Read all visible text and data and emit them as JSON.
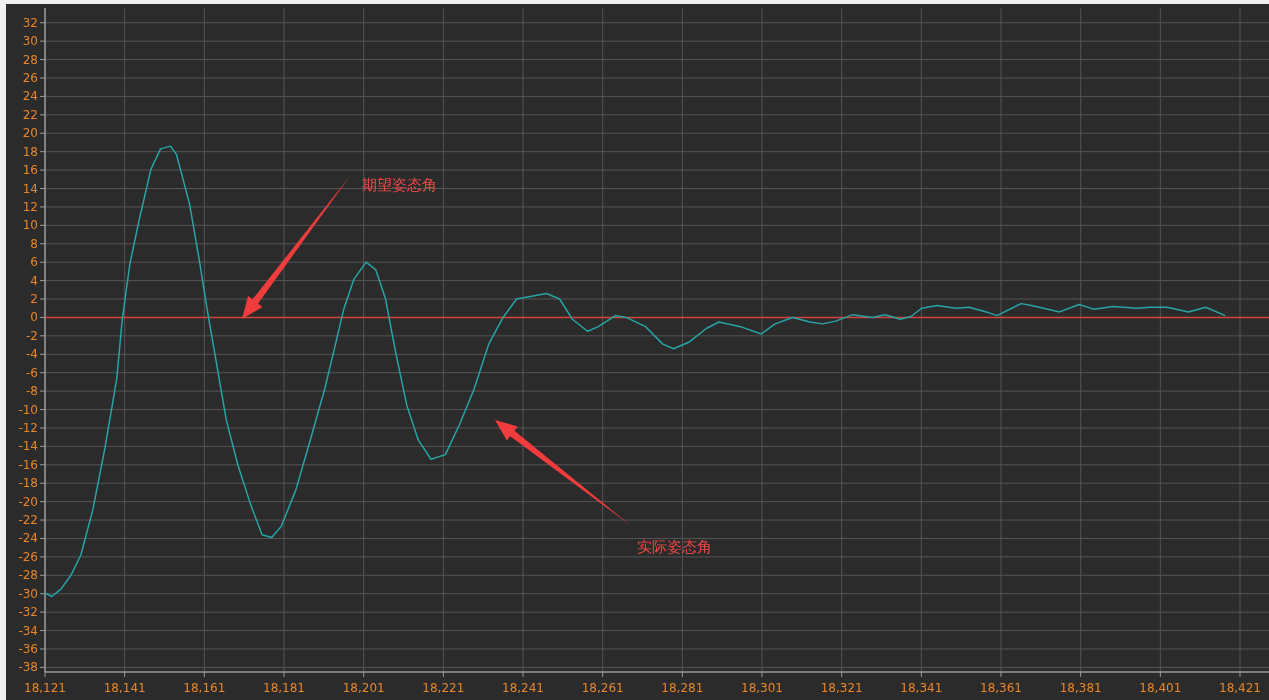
{
  "chart_data": {
    "type": "line",
    "x": [
      18121,
      18122.7,
      18125,
      18127.5,
      18130,
      18133,
      18136,
      18139,
      18140.4,
      18142.3,
      18144.7,
      18147.6,
      18150,
      18152.5,
      18154,
      18157.3,
      18159.7,
      18161.7,
      18163.9,
      18166.5,
      18169.4,
      18172.6,
      18175.5,
      18177.9,
      18180.3,
      18184,
      18187.6,
      18191.2,
      18193.6,
      18196,
      18198.5,
      18201.6,
      18204,
      18206.5,
      18208.9,
      18211.8,
      18214.7,
      18217.9,
      18221.5,
      18225.1,
      18228.7,
      18232.4,
      18236,
      18239.4,
      18246.9,
      18250.2,
      18253.4,
      18257.2,
      18259.9,
      18264.2,
      18266.9,
      18271.8,
      18276.1,
      18278.8,
      18282.6,
      18287,
      18290.2,
      18295.6,
      18300.8,
      18304.3,
      18308.7,
      18313,
      18316.2,
      18319.5,
      18323.8,
      18328.7,
      18331.9,
      18335.7,
      18338.4,
      18341.1,
      18344.9,
      18349.7,
      18353,
      18357.3,
      18360,
      18366,
      18368.7,
      18375.7,
      18380.6,
      18384.3,
      18389.2,
      18395.1,
      18398.4,
      18402.7,
      18408.1,
      18412.4,
      18417.3
    ],
    "series": [
      {
        "color": "#27a4a6",
        "values": [
          -29.9,
          -30.3,
          -29.5,
          -28,
          -25.8,
          -20.9,
          -14.3,
          -6.7,
          -0.2,
          5.8,
          10.7,
          16.1,
          18.3,
          18.6,
          17.7,
          12.3,
          6.3,
          0.9,
          -4.6,
          -11.1,
          -16,
          -20.3,
          -23.6,
          -23.9,
          -22.7,
          -18.7,
          -13.3,
          -7.8,
          -3.5,
          0.9,
          4.1,
          6,
          5.2,
          2,
          -3.5,
          -9.5,
          -13.3,
          -15.4,
          -14.9,
          -11.6,
          -7.8,
          -2.9,
          0,
          2,
          2.6,
          2,
          -0.2,
          -1.5,
          -1,
          0.2,
          0,
          -1,
          -2.9,
          -3.4,
          -2.7,
          -1.2,
          -0.5,
          -1,
          -1.8,
          -0.7,
          0,
          -0.5,
          -0.7,
          -0.4,
          0.3,
          0,
          0.3,
          -0.2,
          0.1,
          1,
          1.3,
          1,
          1.1,
          0.6,
          0.2,
          1.5,
          1.3,
          0.6,
          1.4,
          0.9,
          1.2,
          1,
          1.1,
          1.1,
          0.6,
          1.1,
          0.2
        ]
      }
    ],
    "xlim": [
      18121,
      18421
    ],
    "ylim": [
      -38.5,
      33.6
    ],
    "xticks": [
      {
        "value": 18121,
        "label": "18,121"
      },
      {
        "value": 18141,
        "label": "18,141"
      },
      {
        "value": 18161,
        "label": "18,161"
      },
      {
        "value": 18181,
        "label": "18,181"
      },
      {
        "value": 18201,
        "label": "18,201"
      },
      {
        "value": 18221,
        "label": "18,221"
      },
      {
        "value": 18241,
        "label": "18,241"
      },
      {
        "value": 18261,
        "label": "18,261"
      },
      {
        "value": 18281,
        "label": "18,281"
      },
      {
        "value": 18301,
        "label": "18,301"
      },
      {
        "value": 18321,
        "label": "18,321"
      },
      {
        "value": 18341,
        "label": "18,341"
      },
      {
        "value": 18361,
        "label": "18,361"
      },
      {
        "value": 18381,
        "label": "18,381"
      },
      {
        "value": 18401,
        "label": "18,401"
      },
      {
        "value": 18421,
        "label": "18,421"
      }
    ],
    "yticks": [
      -38,
      -36,
      -34,
      -32,
      -30,
      -28,
      -26,
      -24,
      -22,
      -20,
      -18,
      -16,
      -14,
      -12,
      -10,
      -8,
      -6,
      -4,
      -2,
      0,
      2,
      4,
      6,
      8,
      10,
      12,
      14,
      16,
      18,
      20,
      22,
      24,
      26,
      28,
      30,
      32
    ],
    "grid": true,
    "ref_lines": [
      {
        "axis": "y",
        "value": 0,
        "color": "#d0443a"
      }
    ],
    "annotations": [
      "期望姿态角",
      "实际姿态角"
    ]
  }
}
